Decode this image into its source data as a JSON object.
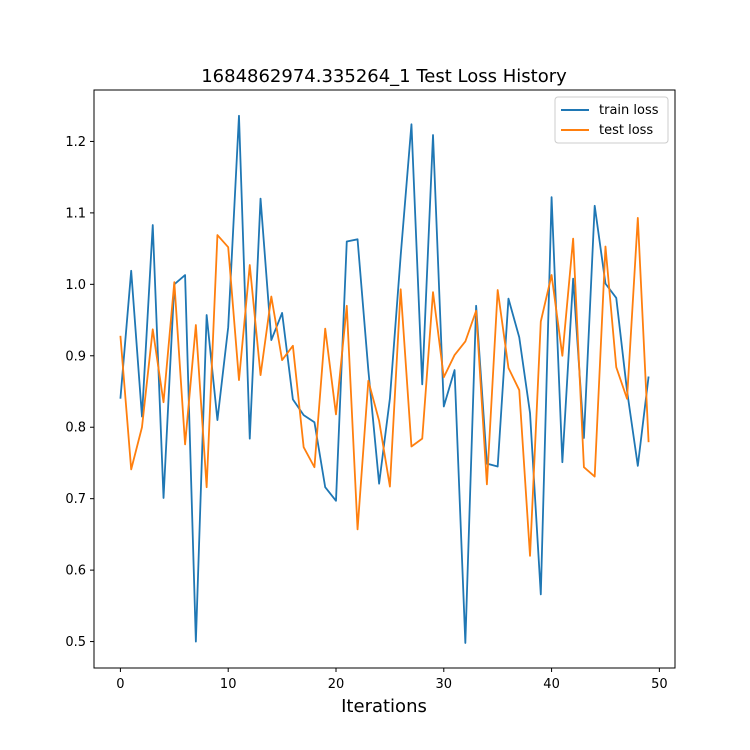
{
  "chart_data": {
    "type": "line",
    "title": "1684862974.335264_1 Test Loss History",
    "xlabel": "Iterations",
    "ylabel": "",
    "xlim": [
      -2.45,
      51.45
    ],
    "ylim": [
      0.463,
      1.272
    ],
    "xticks": [
      0,
      10,
      20,
      30,
      40,
      50
    ],
    "yticks": [
      0.5,
      0.6,
      0.7,
      0.8,
      0.9,
      1.0,
      1.1,
      1.2
    ],
    "ytick_labels": [
      "0.5",
      "0.6",
      "0.7",
      "0.8",
      "0.9",
      "1.0",
      "1.1",
      "1.2"
    ],
    "grid": false,
    "legend_position": "top-right",
    "x": [
      0,
      1,
      2,
      3,
      4,
      5,
      6,
      7,
      8,
      9,
      10,
      11,
      12,
      13,
      14,
      15,
      16,
      17,
      18,
      19,
      20,
      21,
      22,
      23,
      24,
      25,
      26,
      27,
      28,
      29,
      30,
      31,
      32,
      33,
      34,
      35,
      36,
      37,
      38,
      39,
      40,
      41,
      42,
      43,
      44,
      45,
      46,
      47,
      48,
      49
    ],
    "series": [
      {
        "name": "train loss",
        "color": "#1f77b4",
        "values": [
          0.84,
          1.019,
          0.815,
          1.083,
          0.701,
          1.0,
          1.013,
          0.5,
          0.957,
          0.81,
          0.94,
          1.236,
          0.784,
          1.12,
          0.922,
          0.96,
          0.839,
          0.817,
          0.807,
          0.716,
          0.697,
          1.06,
          1.063,
          0.88,
          0.721,
          0.84,
          1.04,
          1.224,
          0.86,
          1.209,
          0.829,
          0.88,
          0.498,
          0.97,
          0.749,
          0.745,
          0.98,
          0.926,
          0.82,
          0.566,
          1.122,
          0.751,
          1.008,
          0.785,
          1.11,
          1.001,
          0.981,
          0.851,
          0.746,
          0.871
        ]
      },
      {
        "name": "test loss",
        "color": "#ff7f0e",
        "values": [
          0.928,
          0.741,
          0.8,
          0.937,
          0.835,
          1.003,
          0.776,
          0.943,
          0.716,
          1.069,
          1.052,
          0.866,
          1.027,
          0.873,
          0.983,
          0.894,
          0.914,
          0.772,
          0.744,
          0.938,
          0.818,
          0.97,
          0.657,
          0.865,
          0.809,
          0.717,
          0.993,
          0.773,
          0.784,
          0.989,
          0.87,
          0.901,
          0.92,
          0.963,
          0.72,
          0.992,
          0.883,
          0.852,
          0.62,
          0.948,
          1.013,
          0.9,
          1.064,
          0.744,
          0.731,
          1.053,
          0.884,
          0.84,
          1.093,
          0.779
        ]
      }
    ]
  }
}
